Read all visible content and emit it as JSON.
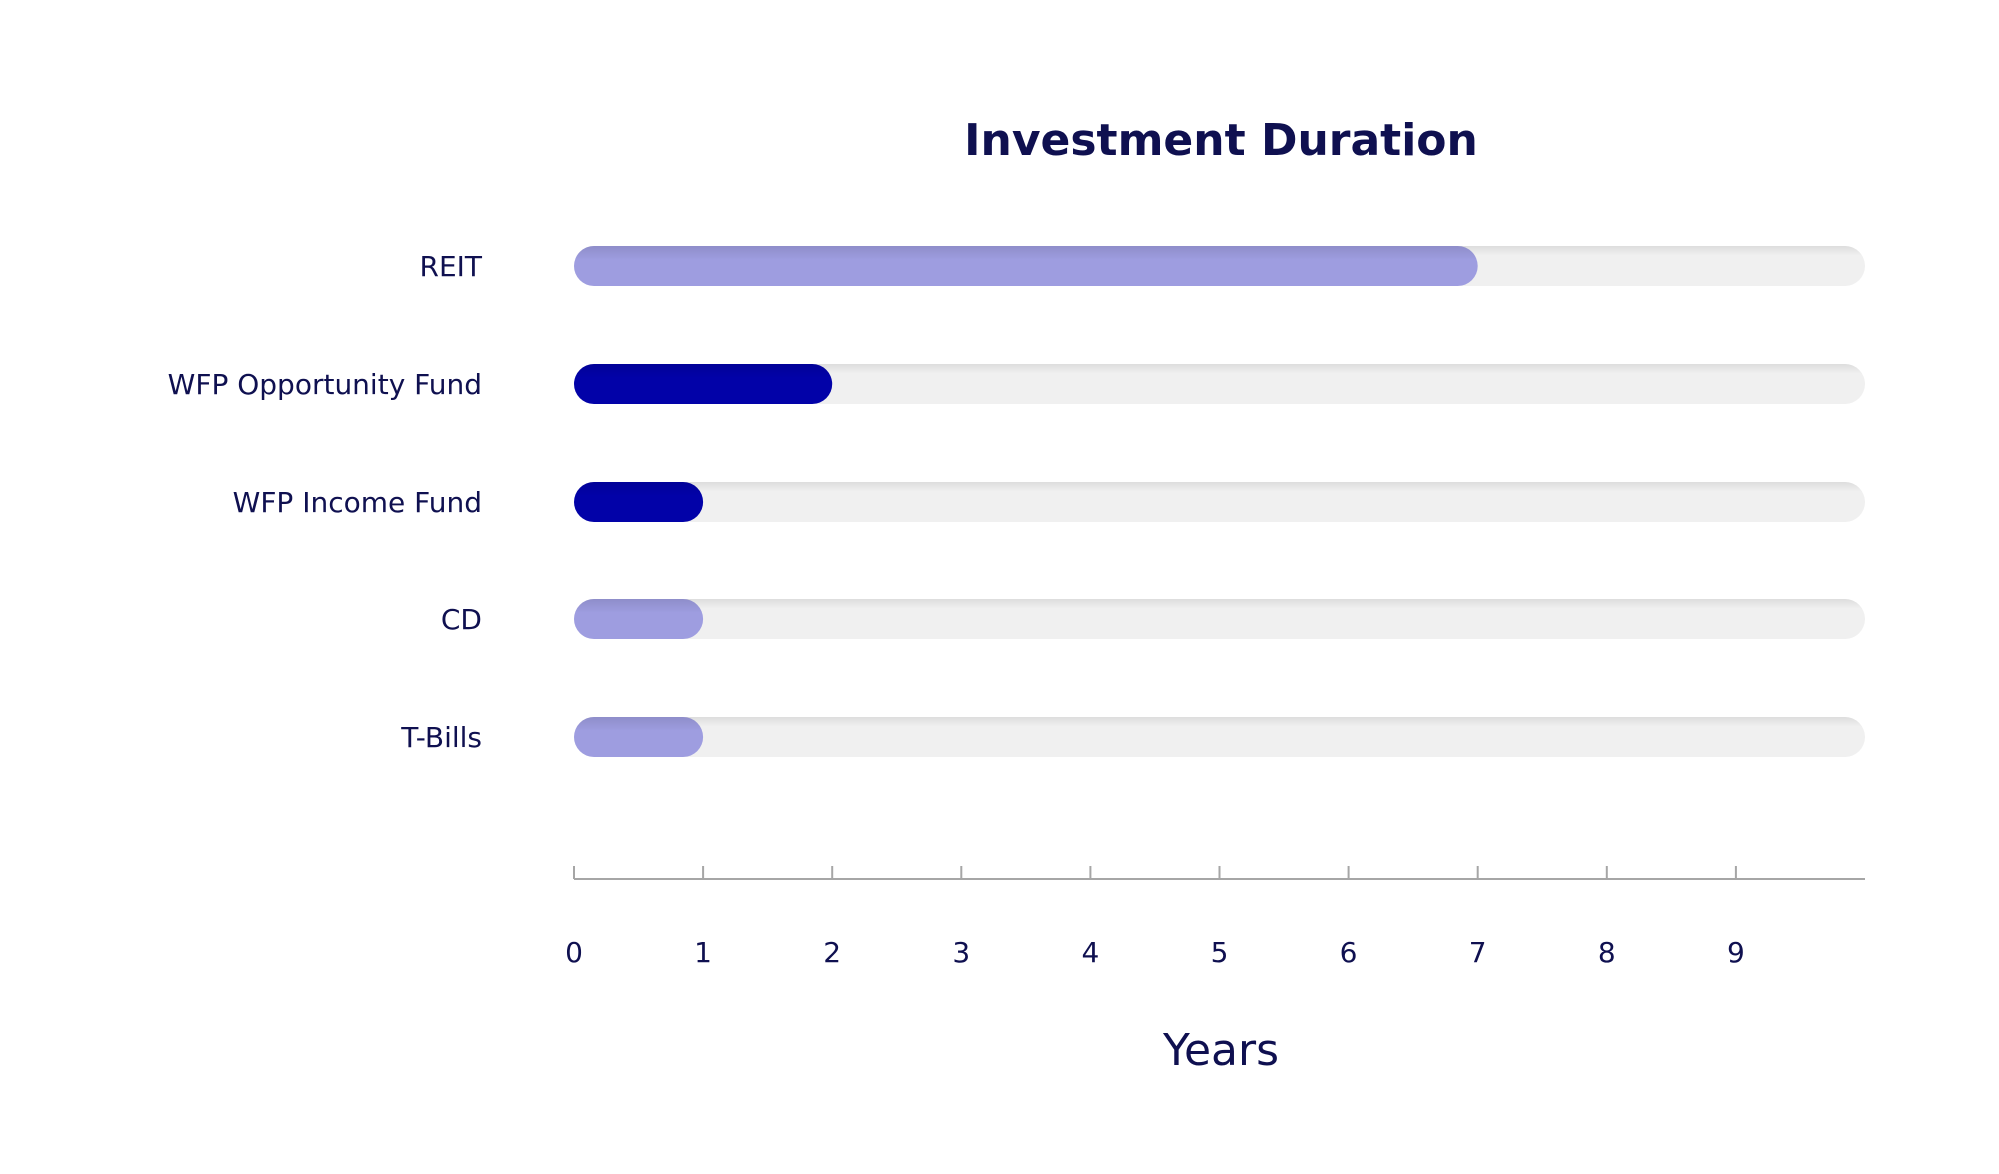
{
  "chart_data": {
    "type": "bar",
    "orientation": "horizontal",
    "title": "Investment Duration",
    "xlabel": "Years",
    "ylabel": "",
    "categories": [
      "REIT",
      "WFP Opportunity Fund",
      "WFP Income Fund",
      "CD",
      "T-Bills"
    ],
    "values": [
      7,
      2,
      1,
      1,
      1
    ],
    "xlim": [
      0,
      10
    ],
    "x_ticks": [
      "0",
      "1",
      "2",
      "3",
      "4",
      "5",
      "6",
      "7",
      "8",
      "9"
    ],
    "grid": false,
    "legend": "none",
    "colors": {
      "light_bar": "#9e9de0",
      "dark_bar": "#0202a8",
      "track": "#f0f0f0",
      "text": "#0f1050",
      "axis": "#a6a6a6"
    },
    "bar_colors": [
      "light_bar",
      "dark_bar",
      "dark_bar",
      "light_bar",
      "light_bar"
    ]
  }
}
